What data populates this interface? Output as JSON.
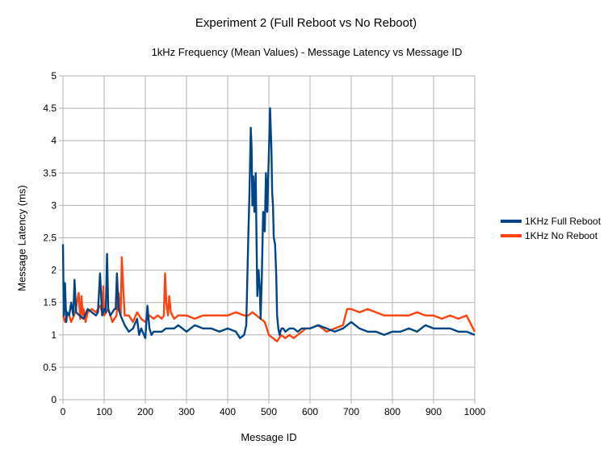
{
  "chart_data": {
    "type": "line",
    "title": "Experiment 2 (Full Reboot vs No Reboot)",
    "subtitle": "1kHz Frequency (Mean Values) - Message Latency vs Message ID",
    "xlabel": "Message ID",
    "ylabel": "Message Latency (ms)",
    "xlim": [
      0,
      1000
    ],
    "ylim": [
      0,
      5
    ],
    "xticks": [
      "0",
      "100",
      "200",
      "300",
      "400",
      "500",
      "600",
      "700",
      "800",
      "900",
      "1000"
    ],
    "yticks": [
      "0",
      "0.5",
      "1",
      "1.5",
      "2",
      "2.5",
      "3",
      "3.5",
      "4",
      "4.5",
      "5"
    ],
    "grid": true,
    "legend": "right",
    "series": [
      {
        "name": "1KHz Full Reboot",
        "color": "#004586",
        "x": [
          0,
          2,
          5,
          8,
          10,
          15,
          20,
          25,
          28,
          32,
          40,
          50,
          60,
          70,
          80,
          85,
          90,
          95,
          100,
          104,
          107,
          110,
          115,
          120,
          125,
          128,
          131,
          135,
          140,
          150,
          160,
          170,
          180,
          185,
          190,
          200,
          205,
          210,
          215,
          220,
          230,
          240,
          250,
          260,
          270,
          280,
          290,
          300,
          320,
          340,
          360,
          380,
          400,
          420,
          430,
          440,
          445,
          450,
          453,
          456,
          458,
          460,
          462,
          465,
          468,
          470,
          472,
          475,
          478,
          480,
          483,
          486,
          490,
          493,
          496,
          500,
          503,
          506,
          508,
          510,
          512,
          515,
          518,
          520,
          523,
          526,
          528,
          531,
          535,
          540,
          550,
          560,
          570,
          580,
          600,
          620,
          640,
          660,
          680,
          700,
          720,
          740,
          760,
          780,
          800,
          820,
          840,
          860,
          880,
          900,
          920,
          940,
          960,
          980,
          1000
        ],
        "y": [
          2.4,
          1.3,
          1.8,
          1.2,
          1.35,
          1.3,
          1.5,
          1.3,
          1.85,
          1.35,
          1.3,
          1.25,
          1.4,
          1.35,
          1.3,
          1.35,
          1.95,
          1.3,
          1.4,
          1.35,
          2.25,
          1.4,
          1.3,
          1.35,
          1.4,
          1.4,
          1.95,
          1.4,
          1.3,
          1.15,
          1.05,
          1.1,
          1.25,
          1.0,
          1.1,
          0.95,
          1.45,
          1.1,
          1.0,
          1.05,
          1.05,
          1.05,
          1.1,
          1.1,
          1.1,
          1.15,
          1.1,
          1.05,
          1.15,
          1.1,
          1.1,
          1.05,
          1.1,
          1.05,
          0.95,
          1.0,
          1.15,
          2.5,
          3.2,
          4.2,
          3.9,
          3.0,
          3.45,
          2.9,
          3.5,
          2.5,
          1.6,
          2.0,
          1.7,
          1.25,
          1.9,
          2.9,
          2.6,
          3.5,
          2.9,
          3.8,
          4.5,
          3.9,
          3.2,
          3.0,
          2.5,
          2.4,
          1.9,
          1.3,
          1.1,
          1.0,
          1.05,
          1.1,
          1.1,
          1.05,
          1.1,
          1.1,
          1.05,
          1.1,
          1.1,
          1.15,
          1.1,
          1.05,
          1.1,
          1.2,
          1.1,
          1.05,
          1.05,
          1.0,
          1.05,
          1.05,
          1.1,
          1.05,
          1.15,
          1.1,
          1.1,
          1.1,
          1.05,
          1.05,
          1.0
        ]
      },
      {
        "name": "1KHz No Reboot",
        "color": "#ff420e",
        "x": [
          0,
          5,
          10,
          15,
          20,
          30,
          38,
          42,
          45,
          48,
          50,
          55,
          60,
          70,
          80,
          90,
          95,
          98,
          100,
          105,
          110,
          120,
          130,
          135,
          140,
          143,
          146,
          150,
          160,
          170,
          180,
          190,
          200,
          210,
          220,
          230,
          240,
          245,
          248,
          251,
          255,
          258,
          262,
          270,
          280,
          300,
          320,
          340,
          360,
          380,
          400,
          420,
          440,
          450,
          460,
          470,
          480,
          490,
          500,
          510,
          520,
          530,
          540,
          550,
          560,
          570,
          580,
          590,
          600,
          620,
          640,
          660,
          680,
          690,
          700,
          720,
          740,
          760,
          780,
          800,
          820,
          840,
          860,
          880,
          900,
          920,
          940,
          960,
          980,
          1000
        ],
        "y": [
          1.3,
          1.2,
          1.35,
          1.3,
          1.2,
          1.35,
          1.65,
          1.25,
          1.6,
          1.3,
          1.4,
          1.2,
          1.35,
          1.4,
          1.35,
          1.45,
          1.35,
          1.75,
          1.3,
          1.35,
          1.4,
          1.2,
          1.3,
          1.65,
          1.3,
          2.2,
          1.75,
          1.3,
          1.3,
          1.2,
          1.35,
          1.25,
          1.2,
          1.3,
          1.25,
          1.3,
          1.25,
          1.3,
          1.95,
          1.5,
          1.3,
          1.6,
          1.35,
          1.25,
          1.3,
          1.3,
          1.25,
          1.3,
          1.3,
          1.3,
          1.3,
          1.35,
          1.3,
          1.3,
          1.35,
          1.3,
          1.25,
          1.2,
          1.0,
          0.95,
          0.9,
          1.0,
          0.95,
          1.0,
          0.95,
          1.0,
          1.05,
          1.1,
          1.1,
          1.15,
          1.05,
          1.1,
          1.15,
          1.4,
          1.4,
          1.35,
          1.4,
          1.35,
          1.3,
          1.3,
          1.3,
          1.3,
          1.35,
          1.3,
          1.3,
          1.25,
          1.3,
          1.25,
          1.3,
          1.05
        ]
      }
    ]
  }
}
